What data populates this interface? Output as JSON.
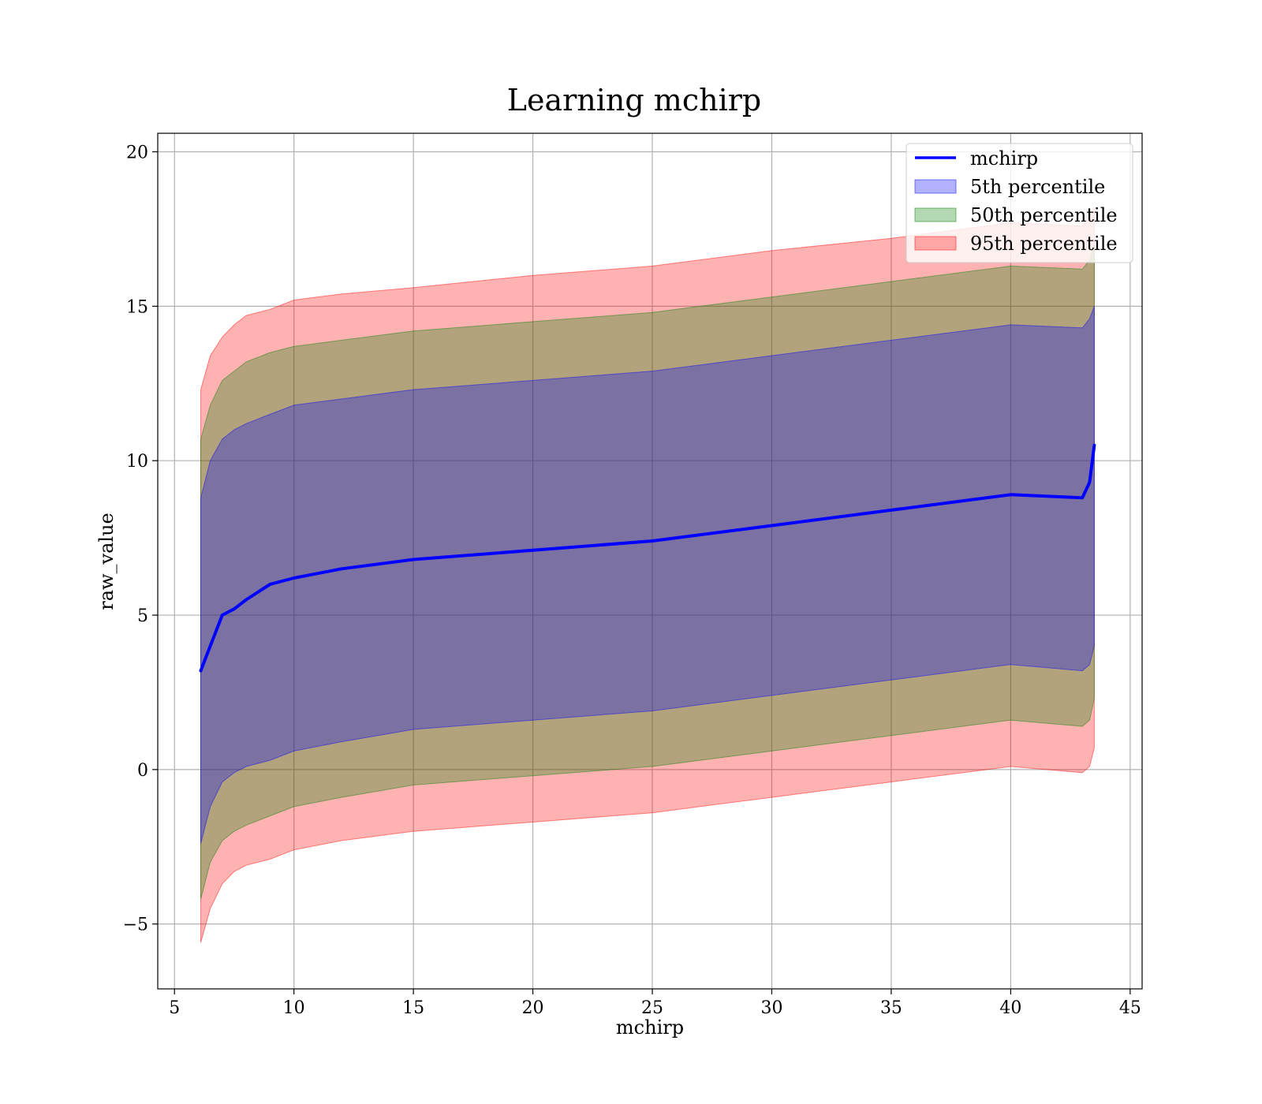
{
  "chart_data": {
    "type": "area",
    "title": "Learning mchirp",
    "xlabel": "mchirp",
    "ylabel": "raw_value",
    "xlim": [
      4.3,
      45.5
    ],
    "ylim": [
      -7.1,
      20.6
    ],
    "x_ticks": [
      5,
      10,
      15,
      20,
      25,
      30,
      35,
      40,
      45
    ],
    "x_tick_labels": [
      "5",
      "10",
      "15",
      "20",
      "25",
      "30",
      "35",
      "40",
      "45"
    ],
    "y_ticks": [
      -5,
      0,
      5,
      10,
      15,
      20
    ],
    "y_tick_labels": [
      "−5",
      "0",
      "5",
      "10",
      "15",
      "20"
    ],
    "grid": true,
    "legend_position": "top-right",
    "x": [
      6.1,
      6.5,
      7.0,
      7.5,
      8.0,
      9.0,
      10.0,
      12.0,
      15.0,
      20.0,
      25.0,
      30.0,
      35.0,
      40.0,
      43.0,
      43.3,
      43.5
    ],
    "series": [
      {
        "name": "mchirp",
        "kind": "line",
        "color": "#0000ff",
        "values": [
          3.2,
          4.0,
          5.0,
          5.2,
          5.5,
          6.0,
          6.2,
          6.5,
          6.8,
          7.1,
          7.4,
          7.9,
          8.4,
          8.9,
          8.8,
          9.3,
          10.5
        ]
      },
      {
        "name": "5th percentile",
        "kind": "band",
        "color": "#0000ff",
        "opacity": 0.3,
        "lower": [
          -2.4,
          -1.2,
          -0.4,
          -0.1,
          0.1,
          0.3,
          0.6,
          0.9,
          1.3,
          1.6,
          1.9,
          2.4,
          2.9,
          3.4,
          3.2,
          3.4,
          4.0
        ],
        "upper": [
          8.8,
          10.0,
          10.7,
          11.0,
          11.2,
          11.5,
          11.8,
          12.0,
          12.3,
          12.6,
          12.9,
          13.4,
          13.9,
          14.4,
          14.3,
          14.6,
          15.0
        ]
      },
      {
        "name": "50th percentile",
        "kind": "band",
        "color": "#008000",
        "opacity": 0.3,
        "lower": [
          -4.2,
          -3.0,
          -2.3,
          -2.0,
          -1.8,
          -1.5,
          -1.2,
          -0.9,
          -0.5,
          -0.2,
          0.1,
          0.6,
          1.1,
          1.6,
          1.4,
          1.6,
          2.3
        ],
        "upper": [
          10.7,
          11.8,
          12.6,
          12.9,
          13.2,
          13.5,
          13.7,
          13.9,
          14.2,
          14.5,
          14.8,
          15.3,
          15.8,
          16.3,
          16.2,
          16.5,
          17.0
        ]
      },
      {
        "name": "95th percentile",
        "kind": "band",
        "color": "#ff0000",
        "opacity": 0.3,
        "lower": [
          -5.6,
          -4.5,
          -3.7,
          -3.3,
          -3.1,
          -2.9,
          -2.6,
          -2.3,
          -2.0,
          -1.7,
          -1.4,
          -0.9,
          -0.4,
          0.1,
          -0.1,
          0.1,
          0.7
        ],
        "upper": [
          12.3,
          13.4,
          14.0,
          14.4,
          14.7,
          14.9,
          15.2,
          15.4,
          15.6,
          16.0,
          16.3,
          16.8,
          17.2,
          17.7,
          17.6,
          17.9,
          18.2
        ]
      }
    ]
  }
}
